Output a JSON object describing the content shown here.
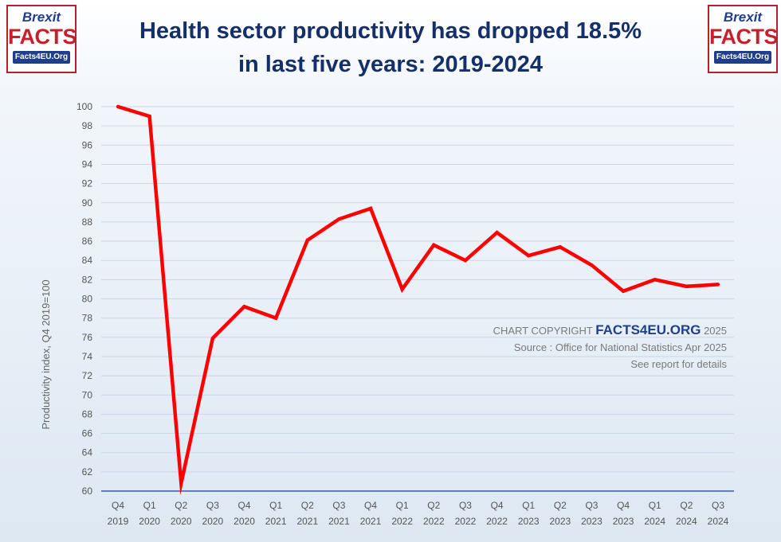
{
  "logo": {
    "line1": "Brexit",
    "line2": "FACTS",
    "line3": "Facts4EU.Org"
  },
  "title": {
    "line1": "Health sector productivity has dropped 18.5%",
    "line2": "in last five years: 2019-2024"
  },
  "watermark": {
    "prefix": "CHART COPYRIGHT",
    "brand": "FACTS4EU.ORG",
    "year": "2025",
    "source": "Source : Office for National Statistics Apr 2025",
    "note": "See report for details"
  },
  "colors": {
    "line": "#ff0000",
    "title": "#152f6b",
    "axis": "#3b5ba8",
    "grid": "#c9d6e8"
  },
  "chart_data": {
    "type": "line",
    "title": "Health sector productivity has dropped 18.5% in last five years: 2019-2024",
    "xlabel": "",
    "ylabel": "Productivity index, Q4 2019=100",
    "ylim": [
      60,
      100
    ],
    "yticks": [
      60,
      62,
      64,
      66,
      68,
      70,
      72,
      74,
      76,
      78,
      80,
      82,
      84,
      86,
      88,
      90,
      92,
      94,
      96,
      98,
      100
    ],
    "grid": true,
    "categories": [
      [
        "Q4",
        "2019"
      ],
      [
        "Q1",
        "2020"
      ],
      [
        "Q2",
        "2020"
      ],
      [
        "Q3",
        "2020"
      ],
      [
        "Q4",
        "2020"
      ],
      [
        "Q1",
        "2021"
      ],
      [
        "Q2",
        "2021"
      ],
      [
        "Q3",
        "2021"
      ],
      [
        "Q4",
        "2021"
      ],
      [
        "Q1",
        "2022"
      ],
      [
        "Q2",
        "2022"
      ],
      [
        "Q3",
        "2022"
      ],
      [
        "Q4",
        "2022"
      ],
      [
        "Q1",
        "2023"
      ],
      [
        "Q2",
        "2023"
      ],
      [
        "Q3",
        "2023"
      ],
      [
        "Q4",
        "2023"
      ],
      [
        "Q1",
        "2024"
      ],
      [
        "Q2",
        "2024"
      ],
      [
        "Q3",
        "2024"
      ]
    ],
    "series": [
      {
        "name": "Productivity index",
        "values": [
          100,
          99,
          60.8,
          75.9,
          79.2,
          78,
          86.1,
          88.3,
          89.4,
          81,
          85.6,
          84,
          86.9,
          84.5,
          85.4,
          83.5,
          80.8,
          82,
          81.3,
          81.5
        ]
      }
    ]
  }
}
